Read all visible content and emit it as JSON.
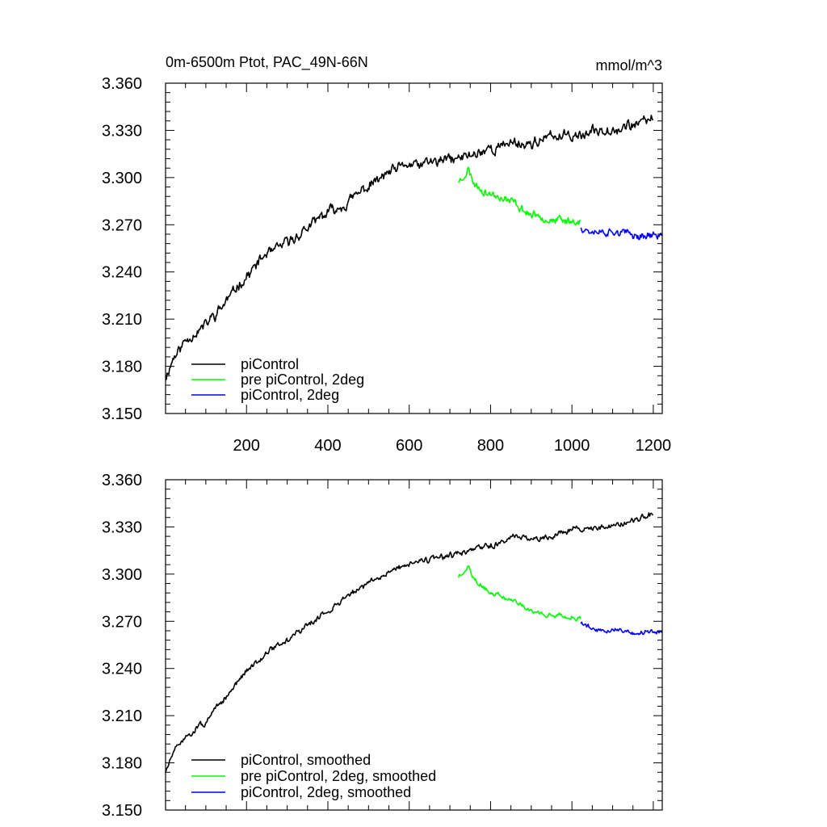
{
  "chart_data": [
    {
      "type": "line",
      "title": "0m-6500m Ptot, PAC_49N-66N",
      "units": "mmol/m^3",
      "xlim": [
        1,
        1222
      ],
      "ylim": [
        3.15,
        3.36
      ],
      "yticks": [
        "3.150",
        "3.180",
        "3.210",
        "3.240",
        "3.270",
        "3.300",
        "3.330",
        "3.360"
      ],
      "xticks": [
        "200",
        "400",
        "600",
        "800",
        "1000",
        "1200"
      ],
      "series": [
        {
          "name": "piControl",
          "color": "#000000",
          "noise": 0.0058,
          "seed": 11,
          "x": [
            1,
            20,
            50,
            100,
            150,
            200,
            250,
            300,
            350,
            400,
            450,
            500,
            550,
            600,
            650,
            700,
            750,
            800,
            850,
            900,
            950,
            1000,
            1050,
            1100,
            1150,
            1200
          ],
          "y": [
            3.173,
            3.186,
            3.197,
            3.207,
            3.222,
            3.238,
            3.251,
            3.258,
            3.268,
            3.277,
            3.286,
            3.294,
            3.302,
            3.307,
            3.309,
            3.311,
            3.314,
            3.318,
            3.322,
            3.322,
            3.325,
            3.328,
            3.329,
            3.331,
            3.333,
            3.338
          ]
        },
        {
          "name": "pre piControl, 2deg",
          "color": "#00ff00",
          "noise": 0.0045,
          "seed": 23,
          "x": [
            721,
            730,
            745,
            760,
            800,
            850,
            900,
            950,
            1000,
            1022
          ],
          "y": [
            3.298,
            3.299,
            3.305,
            3.296,
            3.289,
            3.284,
            3.276,
            3.274,
            3.273,
            3.272
          ]
        },
        {
          "name": "piControl, 2deg",
          "color": "#0000ff",
          "noise": 0.0045,
          "seed": 37,
          "x": [
            1022,
            1060,
            1100,
            1150,
            1200,
            1222
          ],
          "y": [
            3.269,
            3.265,
            3.265,
            3.263,
            3.263,
            3.264
          ]
        }
      ]
    },
    {
      "type": "line",
      "xlim": [
        1,
        1222
      ],
      "ylim": [
        3.15,
        3.36
      ],
      "yticks": [
        "3.150",
        "3.180",
        "3.210",
        "3.240",
        "3.270",
        "3.300",
        "3.330",
        "3.360"
      ],
      "series": [
        {
          "name": "piControl, smoothed",
          "color": "#000000",
          "noise": 0.0032,
          "seed": 51,
          "x": [
            1,
            20,
            50,
            100,
            150,
            200,
            250,
            300,
            350,
            400,
            450,
            500,
            550,
            600,
            650,
            700,
            750,
            800,
            850,
            900,
            950,
            1000,
            1050,
            1100,
            1150,
            1200
          ],
          "y": [
            3.174,
            3.186,
            3.197,
            3.207,
            3.222,
            3.238,
            3.251,
            3.258,
            3.268,
            3.277,
            3.286,
            3.294,
            3.302,
            3.307,
            3.309,
            3.311,
            3.314,
            3.318,
            3.322,
            3.322,
            3.325,
            3.328,
            3.329,
            3.331,
            3.333,
            3.338
          ]
        },
        {
          "name": "pre piControl, 2deg, smoothed",
          "color": "#00ff00",
          "noise": 0.0026,
          "seed": 63,
          "x": [
            721,
            730,
            745,
            760,
            800,
            850,
            900,
            950,
            1000,
            1022
          ],
          "y": [
            3.298,
            3.299,
            3.305,
            3.296,
            3.289,
            3.284,
            3.276,
            3.274,
            3.273,
            3.272
          ]
        },
        {
          "name": "piControl, 2deg, smoothed",
          "color": "#0000ff",
          "noise": 0.0026,
          "seed": 79,
          "x": [
            1022,
            1060,
            1100,
            1150,
            1200,
            1222
          ],
          "y": [
            3.269,
            3.265,
            3.265,
            3.263,
            3.263,
            3.264
          ]
        }
      ]
    }
  ]
}
